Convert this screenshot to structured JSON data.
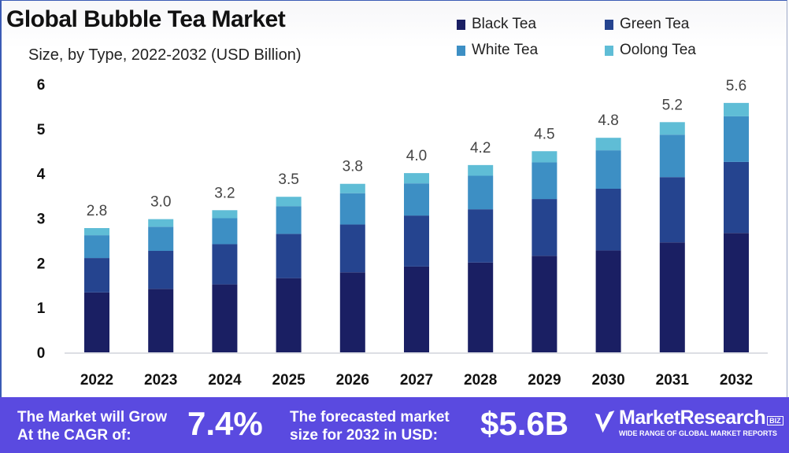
{
  "chart_data": {
    "type": "bar",
    "stacked": true,
    "title": "Global Bubble Tea Market",
    "subtitle": "Size, by Type, 2022-2032 (USD Billion)",
    "xlabel": "",
    "ylabel": "",
    "ylim": [
      0,
      6
    ],
    "yticks": [
      "0",
      "1",
      "2",
      "3",
      "4",
      "5",
      "6"
    ],
    "grid": false,
    "legend_position": "top-right",
    "categories": [
      "2022",
      "2023",
      "2024",
      "2025",
      "2026",
      "2027",
      "2028",
      "2029",
      "2030",
      "2031",
      "2032"
    ],
    "totals_labels": [
      "2.8",
      "3.0",
      "3.2",
      "3.5",
      "3.8",
      "4.0",
      "4.2",
      "4.5",
      "4.8",
      "5.2",
      "5.6"
    ],
    "series": [
      {
        "name": "Black Tea",
        "color": "#1a1f63",
        "values": [
          1.34,
          1.42,
          1.52,
          1.66,
          1.79,
          1.92,
          2.01,
          2.16,
          2.28,
          2.46,
          2.67
        ]
      },
      {
        "name": "Green Tea",
        "color": "#25448f",
        "values": [
          0.77,
          0.85,
          0.9,
          0.99,
          1.07,
          1.14,
          1.19,
          1.27,
          1.38,
          1.46,
          1.59
        ]
      },
      {
        "name": "White Tea",
        "color": "#3d8fc4",
        "values": [
          0.51,
          0.54,
          0.58,
          0.62,
          0.7,
          0.72,
          0.75,
          0.82,
          0.86,
          0.95,
          1.02
        ]
      },
      {
        "name": "Oolong Tea",
        "color": "#5fbdd6",
        "values": [
          0.16,
          0.17,
          0.18,
          0.21,
          0.21,
          0.23,
          0.24,
          0.25,
          0.28,
          0.28,
          0.3
        ]
      }
    ]
  },
  "footer": {
    "cagr_text_line1": "The Market will Grow",
    "cagr_text_line2": "At the CAGR of:",
    "cagr_value": "7.4%",
    "forecast_text_line1": "The forecasted market",
    "forecast_text_line2": "size for 2032 in USD:",
    "forecast_value": "$5.6B",
    "logo_name": "MarketResearch",
    "logo_badge": "BIZ",
    "logo_tagline": "WIDE RANGE OF GLOBAL MARKET REPORTS",
    "background_color": "#5a4ae0"
  }
}
